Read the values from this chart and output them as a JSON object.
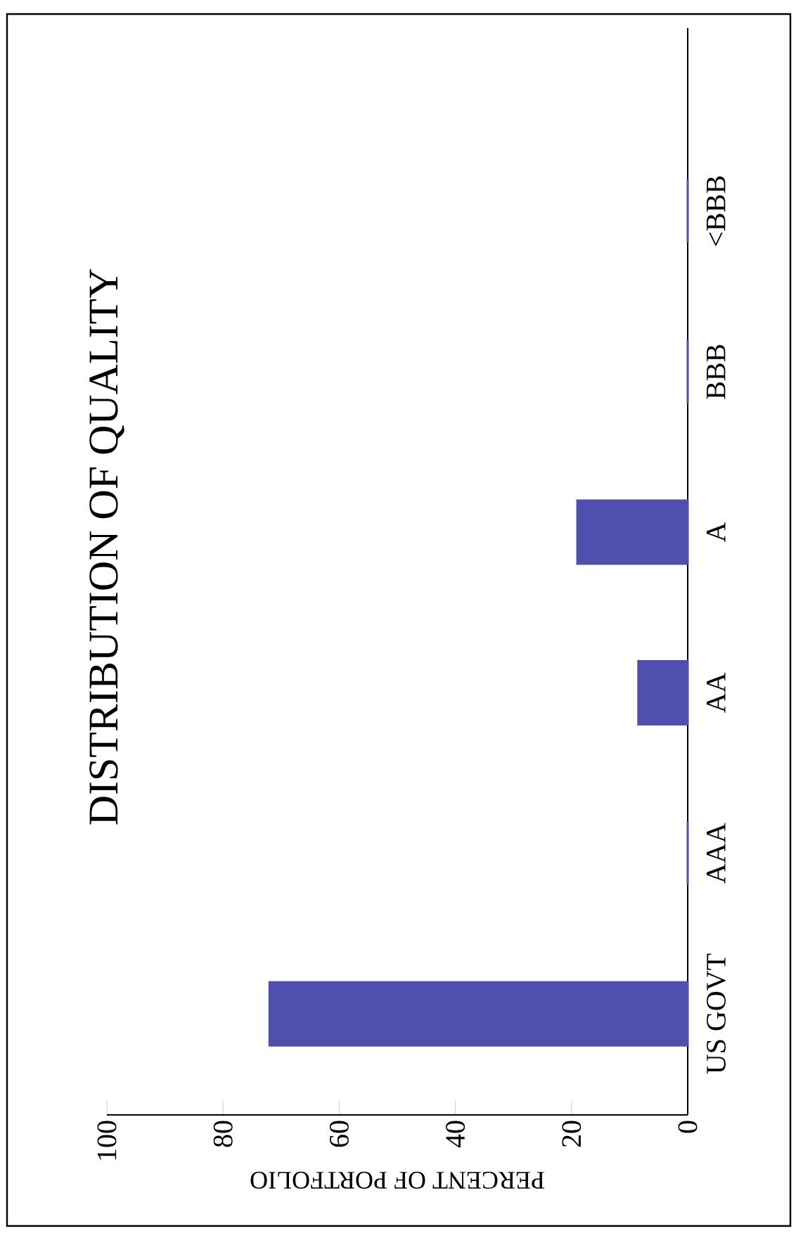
{
  "chart_data": {
    "type": "bar",
    "orientation": "horizontal",
    "title": "DISTRIBUTION OF QUALITY",
    "xlabel": "PERCENT OF PORTFOLIO",
    "categories": [
      "<BBB",
      "BBB",
      "A",
      "AA",
      "AAA",
      "US GOVT"
    ],
    "values": [
      0,
      0,
      19,
      8.5,
      0,
      72
    ],
    "color": "#4f4fb0",
    "xlim": [
      100,
      0
    ],
    "xticks": [
      0,
      20,
      40,
      60,
      80,
      100
    ]
  }
}
